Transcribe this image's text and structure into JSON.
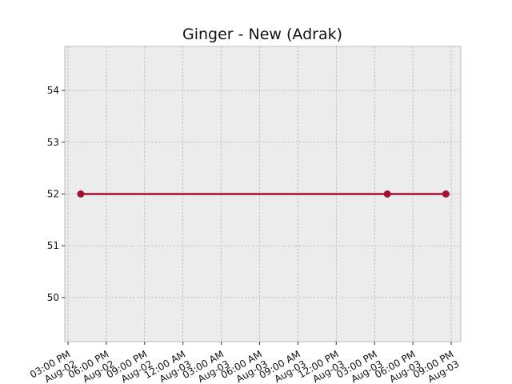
{
  "chart_data": {
    "type": "line",
    "title": "Ginger - New (Adrak)",
    "xlabel": "",
    "ylabel": "",
    "x_axis": "datetime",
    "xlim": [
      "2024-08-02T14:45",
      "2024-08-03T21:45"
    ],
    "ylim": [
      49.15,
      54.85
    ],
    "y_ticks": [
      50,
      51,
      52,
      53,
      54
    ],
    "x_ticks": [
      {
        "value": "2024-08-02T15:00",
        "label": [
          "03:00 PM",
          "Aug-02"
        ]
      },
      {
        "value": "2024-08-02T18:00",
        "label": [
          "06:00 PM",
          "Aug-02"
        ]
      },
      {
        "value": "2024-08-02T21:00",
        "label": [
          "09:00 PM",
          "Aug-02"
        ]
      },
      {
        "value": "2024-08-03T00:00",
        "label": [
          "12:00 AM",
          "Aug-03"
        ]
      },
      {
        "value": "2024-08-03T03:00",
        "label": [
          "03:00 AM",
          "Aug-03"
        ]
      },
      {
        "value": "2024-08-03T06:00",
        "label": [
          "06:00 AM",
          "Aug-03"
        ]
      },
      {
        "value": "2024-08-03T09:00",
        "label": [
          "09:00 AM",
          "Aug-03"
        ]
      },
      {
        "value": "2024-08-03T12:00",
        "label": [
          "12:00 PM",
          "Aug-03"
        ]
      },
      {
        "value": "2024-08-03T15:00",
        "label": [
          "03:00 PM",
          "Aug-03"
        ]
      },
      {
        "value": "2024-08-03T18:00",
        "label": [
          "06:00 PM",
          "Aug-03"
        ]
      },
      {
        "value": "2024-08-03T21:00",
        "label": [
          "09:00 PM",
          "Aug-03"
        ]
      }
    ],
    "grid": true,
    "series": [
      {
        "color": "#a50f33",
        "marker": "circle",
        "points": [
          {
            "x": "2024-08-02T16:00",
            "y": 52
          },
          {
            "x": "2024-08-03T16:00",
            "y": 52
          },
          {
            "x": "2024-08-03T20:35",
            "y": 52
          }
        ]
      }
    ],
    "colors": {
      "plot_background": "#ececec",
      "grid": "#b4b4b4",
      "axis_frame": "#bcbcbc",
      "line": "#a50f33"
    }
  }
}
